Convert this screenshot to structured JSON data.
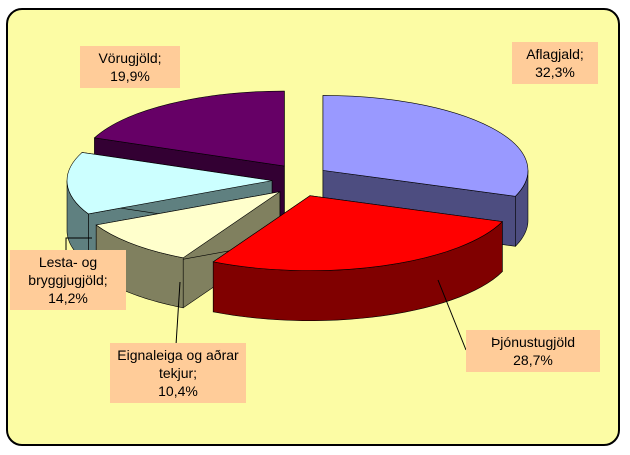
{
  "chart_data": {
    "type": "pie3d",
    "categories": [
      "Aflagjald;",
      "Þjónustugjöld",
      "Eignaleiga og aðrar tekjur;",
      "Lesta- og bryggjugjöld;",
      "Vörugjöld;"
    ],
    "values": [
      32.3,
      28.7,
      10.4,
      14.2,
      19.9
    ],
    "value_labels": [
      "32,3%",
      "28,7%",
      "10,4%",
      "14,2%",
      "19,9%"
    ],
    "colors": [
      "#9999ff",
      "#ff0000",
      "#ffffcc",
      "#ccffff",
      "#660066"
    ],
    "side_colors": [
      "#4d4d80",
      "#800000",
      "#80805f",
      "#5f8080",
      "#330033"
    ]
  }
}
